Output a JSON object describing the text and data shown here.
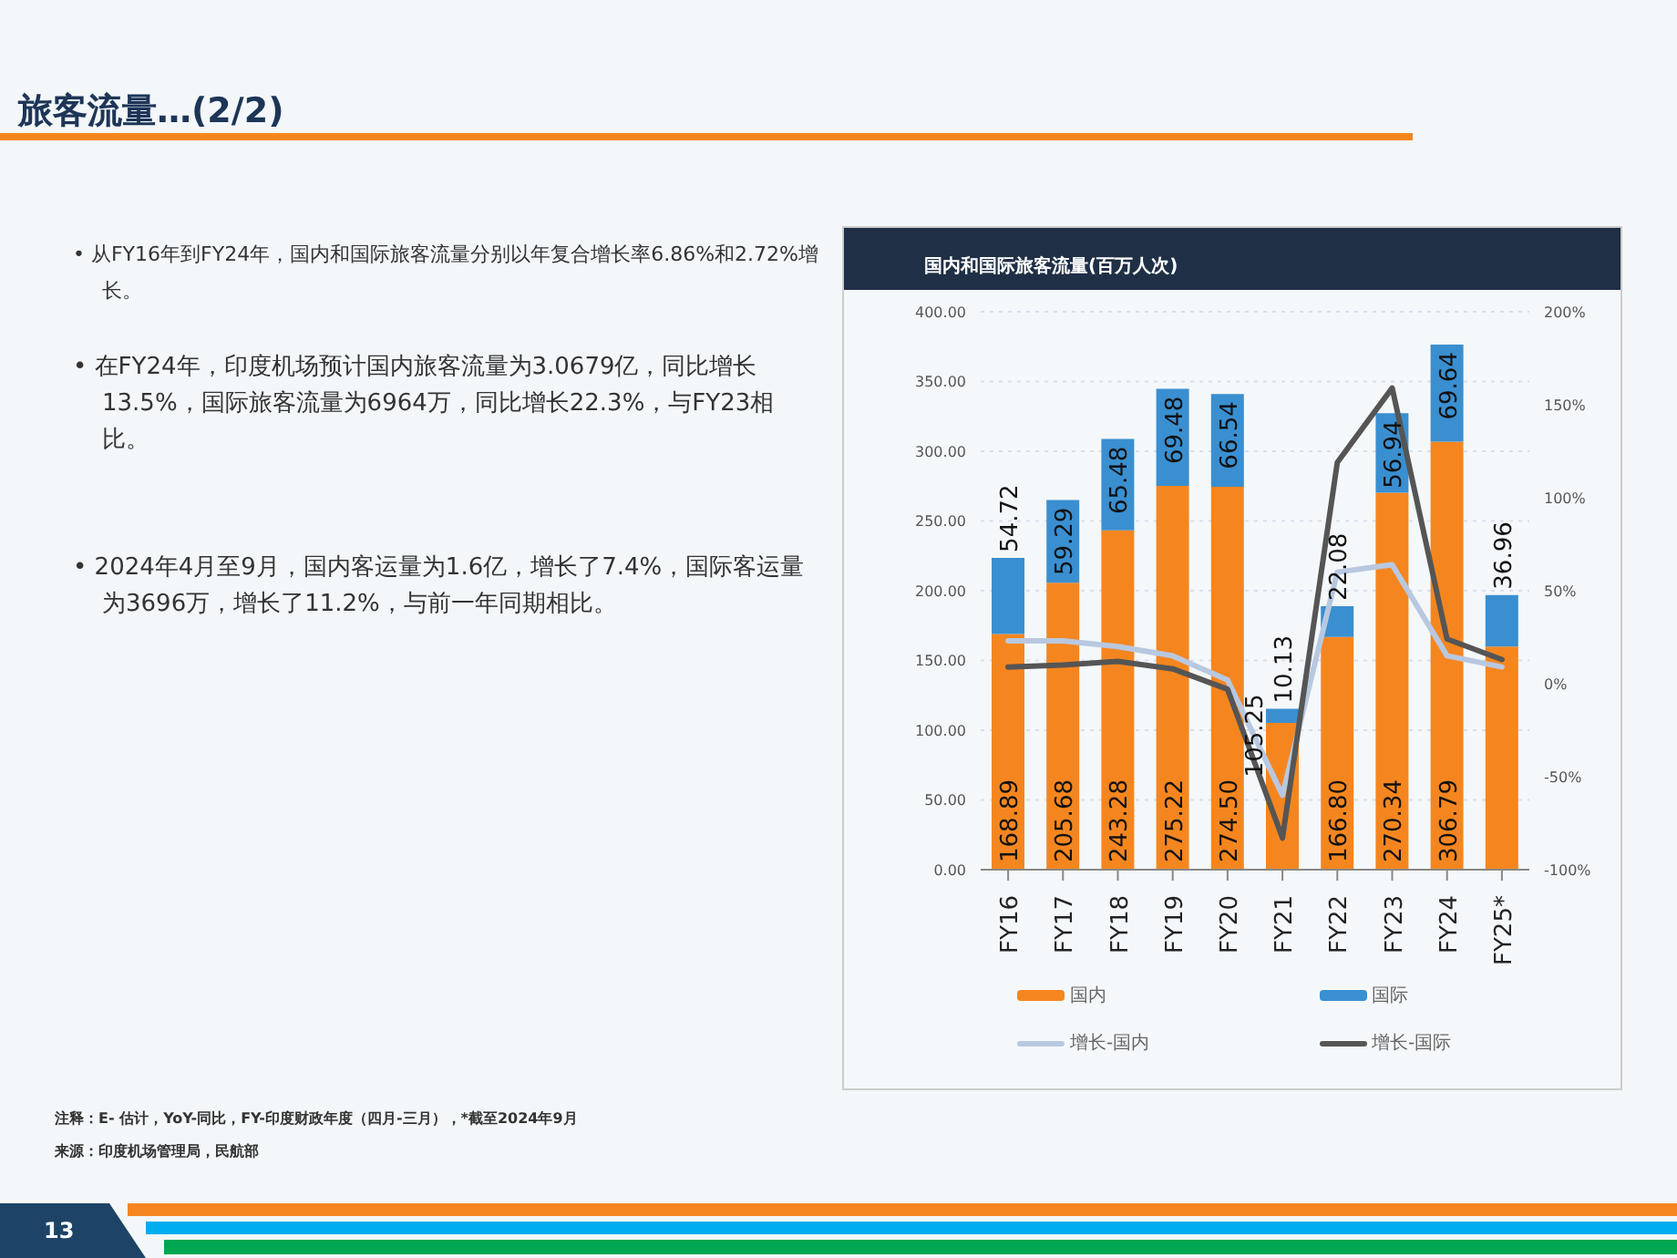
{
  "chart_data": {
    "type": "bar",
    "title": "国内和国际旅客流量(百万人次)",
    "categories": [
      "FY16",
      "FY17",
      "FY18",
      "FY19",
      "FY20",
      "FY21",
      "FY22",
      "FY23",
      "FY24",
      "FY25*"
    ],
    "stacked": true,
    "series": [
      {
        "name": "国内",
        "color": "#f5861f",
        "values": [
          168.89,
          205.68,
          243.28,
          275.22,
          274.5,
          105.25,
          166.8,
          270.34,
          306.79,
          160
        ],
        "value_labels": [
          "168.89",
          "205.68",
          "243.28",
          "275.22",
          "274.50",
          "105.25",
          "166.80",
          "270.34",
          "306.79",
          null
        ]
      },
      {
        "name": "国际",
        "color": "#3a8fd0",
        "values": [
          54.72,
          59.29,
          65.48,
          69.48,
          66.54,
          10.13,
          22.08,
          56.94,
          69.64,
          36.96
        ],
        "value_labels": [
          "54.72",
          "59.29",
          "65.48",
          "69.48",
          "66.54",
          "10.13",
          "22.08",
          "56.94",
          "69.64",
          "36.96"
        ]
      },
      {
        "name": "增长-国内",
        "type": "line",
        "axis": "y2",
        "color": "#b8c8e0",
        "values": [
          23,
          23,
          20,
          15,
          2,
          -60,
          60,
          64,
          15,
          9
        ]
      },
      {
        "name": "增长-国际",
        "type": "line",
        "axis": "y2",
        "color": "#555555",
        "values": [
          9,
          10,
          12,
          8,
          -3,
          -83,
          119,
          159,
          24,
          13
        ]
      }
    ],
    "ylim": [
      0,
      400
    ],
    "yticks": [
      {
        "value": 0,
        "label": "0.00"
      },
      {
        "value": 50,
        "label": "50.00"
      },
      {
        "value": 100,
        "label": "100.00"
      },
      {
        "value": 150,
        "label": "150.00"
      },
      {
        "value": 200,
        "label": "200.00"
      },
      {
        "value": 250,
        "label": "250.00"
      },
      {
        "value": 300,
        "label": "300.00"
      },
      {
        "value": 350,
        "label": "350.00"
      },
      {
        "value": 400,
        "label": "400.00"
      }
    ],
    "y2lim": [
      -100,
      200
    ],
    "y2ticks": [
      {
        "value": -100,
        "label": "-100%"
      },
      {
        "value": -50,
        "label": "-50%"
      },
      {
        "value": 0,
        "label": "0%"
      },
      {
        "value": 50,
        "label": "50%"
      },
      {
        "value": 100,
        "label": "100%"
      },
      {
        "value": 150,
        "label": "150%"
      },
      {
        "value": 200,
        "label": "200%"
      }
    ],
    "grid": "y",
    "legend": "bottom",
    "marker": "none",
    "line_style": "solid",
    "annotations": [
      "旅客流量…(2/2)",
      "• 从FY16年到FY24年，国内和国际旅客流量分别以年复合增长率6.86%和2.72%增长。",
      "• 在FY24年，印度机场预计国内旅客流量为3.0679亿，同比增长13.5%，国际旅客流量为6964万，同比增长22.3%，与FY23相比。",
      "• 2024年4月至9月，国内客运量为1.6亿，增长了7.4%，国际客运量为3696万，增长了11.2%，与前一年同期相比。",
      "注释：E- 估计，YoY-同比，FY-印度财政年度（四月-三月），*截至2024年9月",
      "来源：印度机场管理局，民航部",
      "13"
    ]
  }
}
